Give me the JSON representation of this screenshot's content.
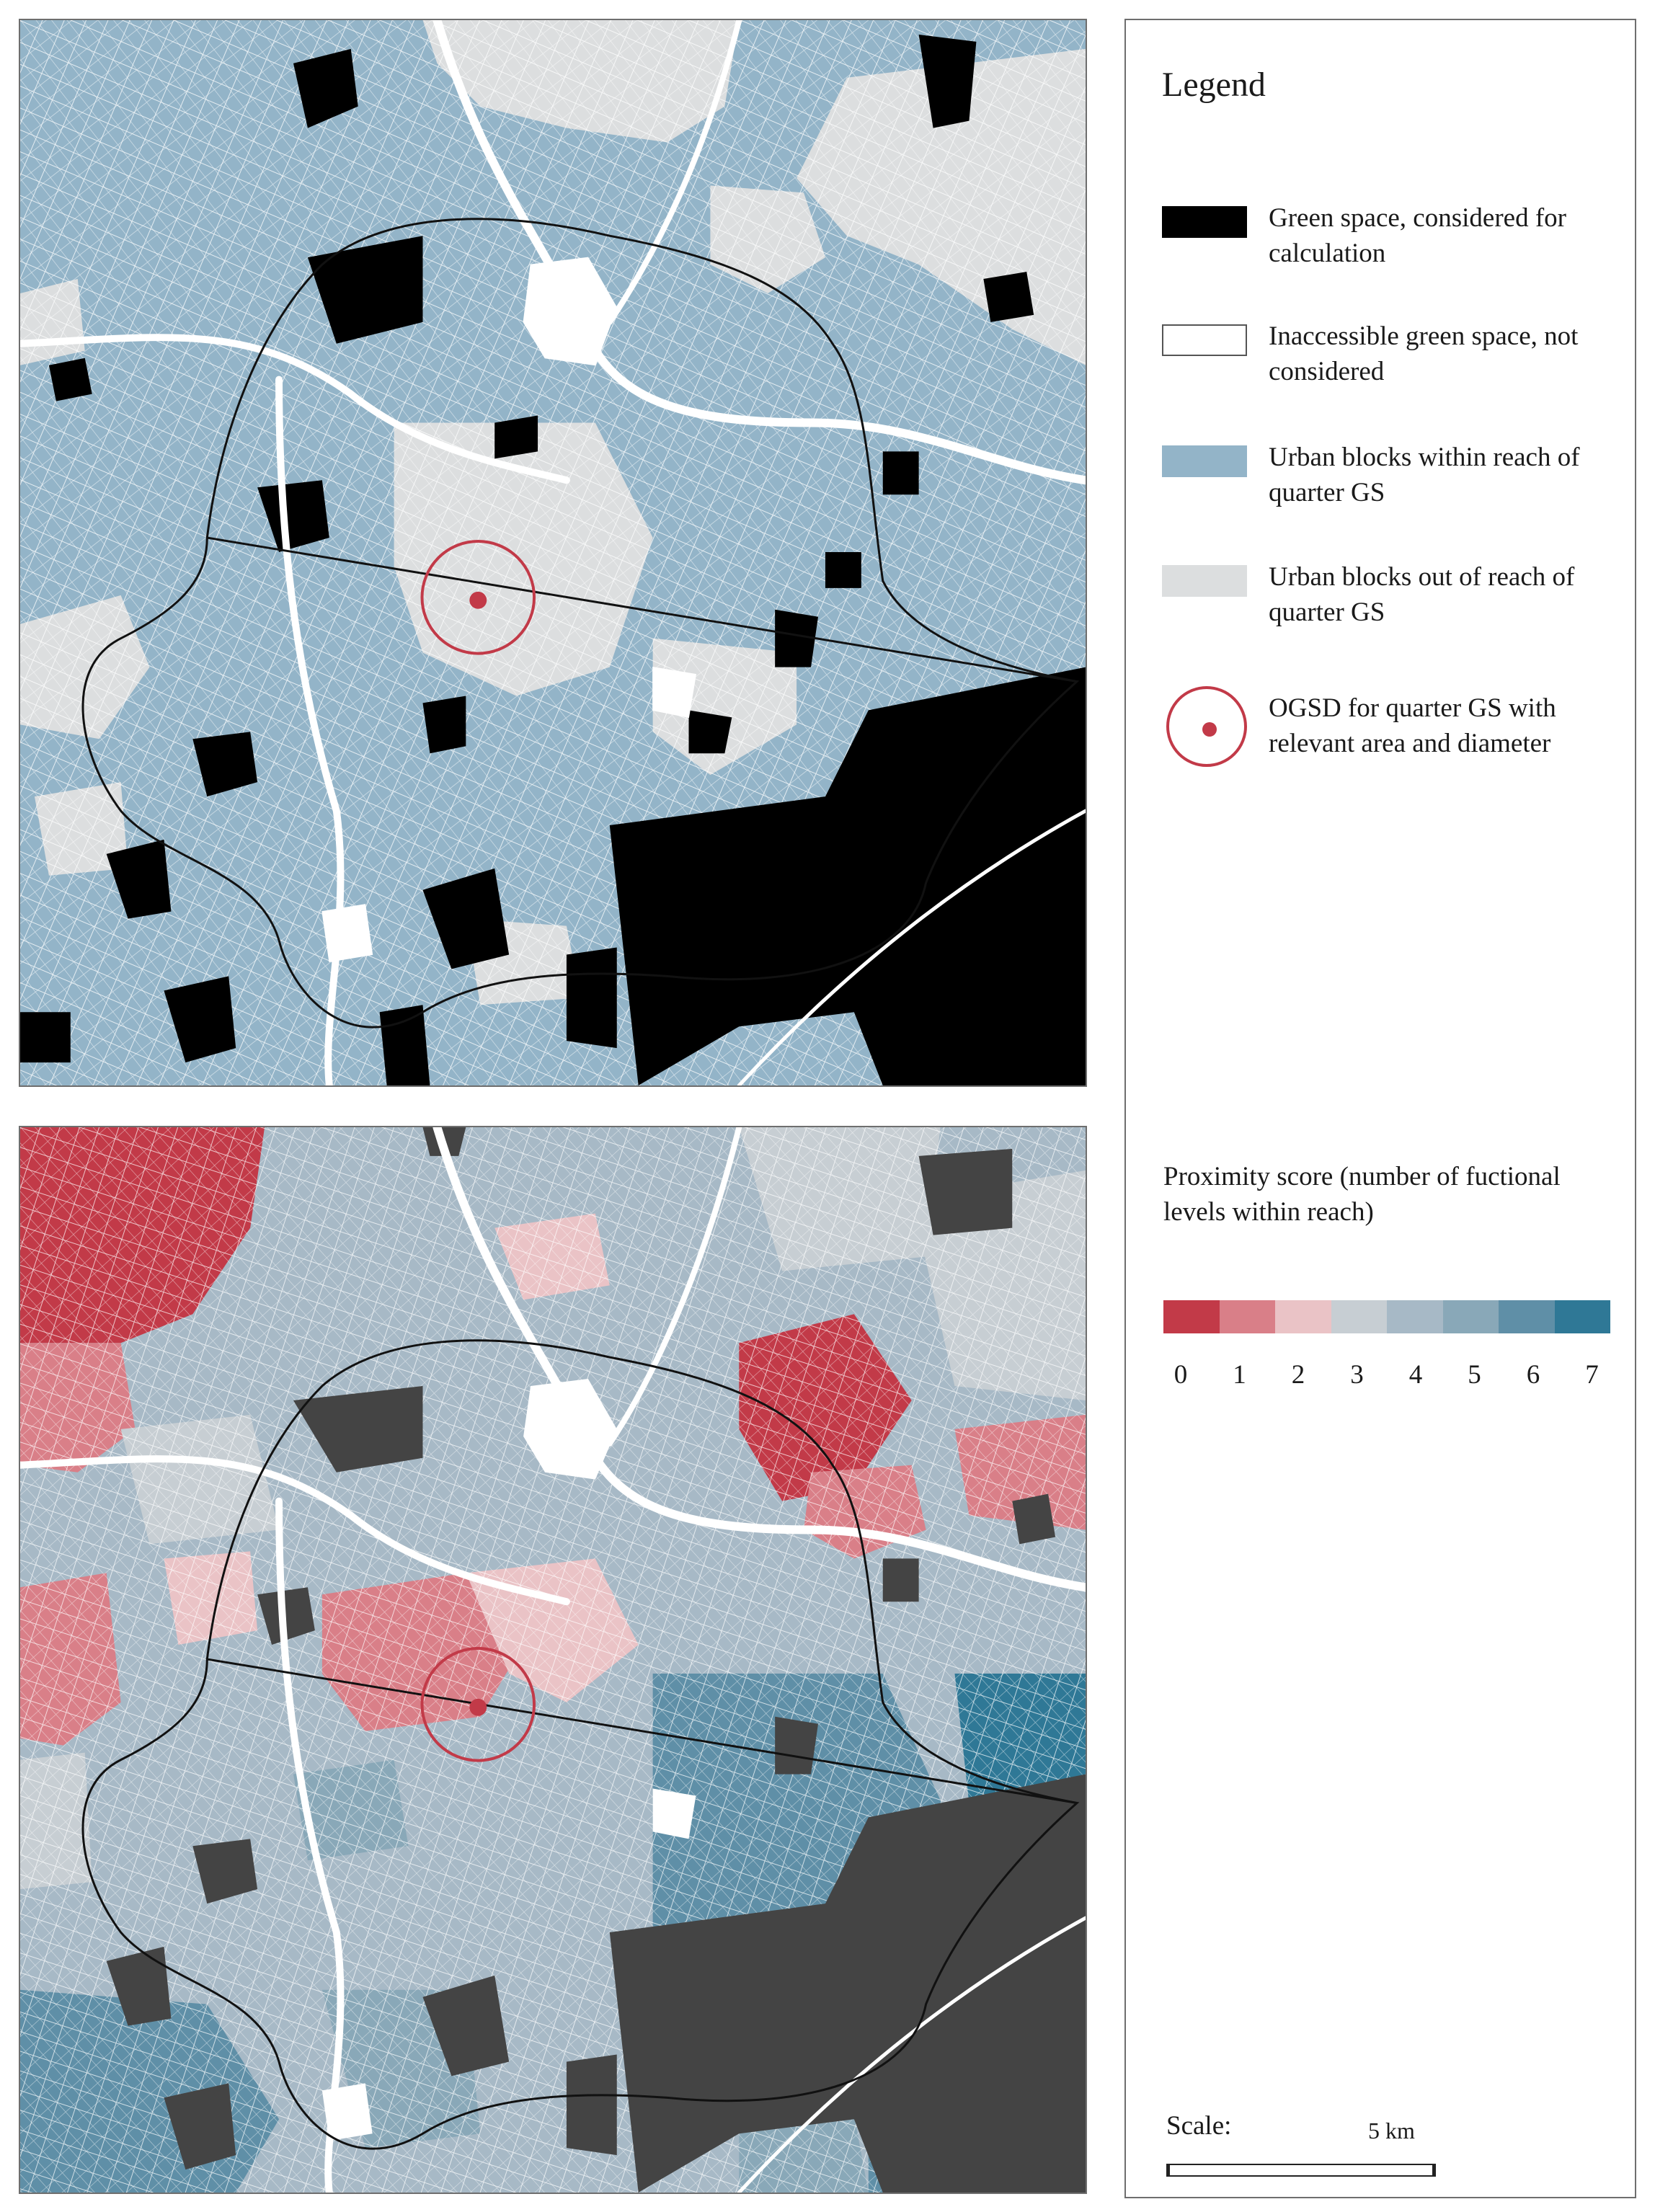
{
  "legend": {
    "title": "Legend",
    "items": [
      {
        "label": "Green space, considered for calculation",
        "color": "#000000"
      },
      {
        "label": "Inaccessible green space, not considered",
        "color": "#ffffff"
      },
      {
        "label": "Urban blocks within reach of quarter GS",
        "color": "#93b4c8"
      },
      {
        "label": "Urban blocks out of reach of quarter GS",
        "color": "#dcdedf"
      },
      {
        "label": "OGSD for quarter GS with relevant area and diameter",
        "color": "#c23a48"
      }
    ]
  },
  "proximity": {
    "title": "Proximity score (number of fuctional levels within reach)",
    "ticks": [
      "0",
      "1",
      "2",
      "3",
      "4",
      "5",
      "6",
      "7"
    ],
    "colors": [
      "#c23a48",
      "#d97f88",
      "#eac3c6",
      "#c7ced3",
      "#a7b9c6",
      "#89a8b8",
      "#5f8fa7",
      "#2f7896"
    ]
  },
  "scale": {
    "label": "Scale:",
    "distance": "5 km"
  }
}
